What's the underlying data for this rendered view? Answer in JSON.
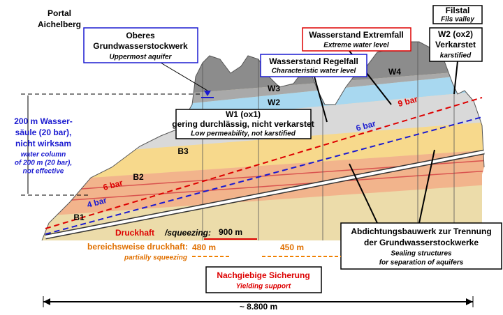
{
  "portal": {
    "lines": [
      "Portal",
      "Aichelberg"
    ]
  },
  "fils": {
    "title": "Filstal",
    "subtitle": "Fils valley"
  },
  "uppermost_aquifer": {
    "lines": [
      "Oberes",
      "Grundwasserstockwerk"
    ],
    "english": "Uppermost aquifer"
  },
  "extreme_level": {
    "title": "Wasserstand Extremfall",
    "english": "Extreme water level"
  },
  "regular_level": {
    "title": "Wasserstand Regelfall",
    "english": "Characteristic water level"
  },
  "w2_ox2": {
    "lines": [
      "W2 (ox2)",
      "Verkarstet"
    ],
    "english": "karstified"
  },
  "layers": [
    "W4",
    "W3",
    "W2",
    "B3",
    "B2",
    "B1"
  ],
  "w1": {
    "title": "W1 (ox1)",
    "german": "gering durchlässig, nicht verkarstet",
    "english": "Low permeability, not karstified"
  },
  "pressure_labels": [
    "9 bar",
    "6 bar",
    "6 bar",
    "4 bar"
  ],
  "water_column": {
    "lines": [
      "200 m Wasser-",
      "säule (20 bar),",
      "nicht wirksam"
    ],
    "english": [
      "water column",
      "of 200 m (20 bar),",
      "not effective"
    ]
  },
  "squeezing": {
    "german": "Druckhaft",
    "english": "/squeezing:"
  },
  "partial": {
    "german": "bereichsweise druckhaft:",
    "english": "partially squeezing"
  },
  "distances": [
    "900 m",
    "480 m",
    "450 m"
  ],
  "support": {
    "german": "Nachgiebige Sicherung",
    "english": "Yielding support"
  },
  "sealing": {
    "lines": [
      "Abdichtungsbauwerk zur Trennung",
      "der Grundwasserstockwerke"
    ],
    "english": [
      "Sealing structures",
      "for separation of aquifers"
    ]
  },
  "total_length": "~ 8.800 m"
}
